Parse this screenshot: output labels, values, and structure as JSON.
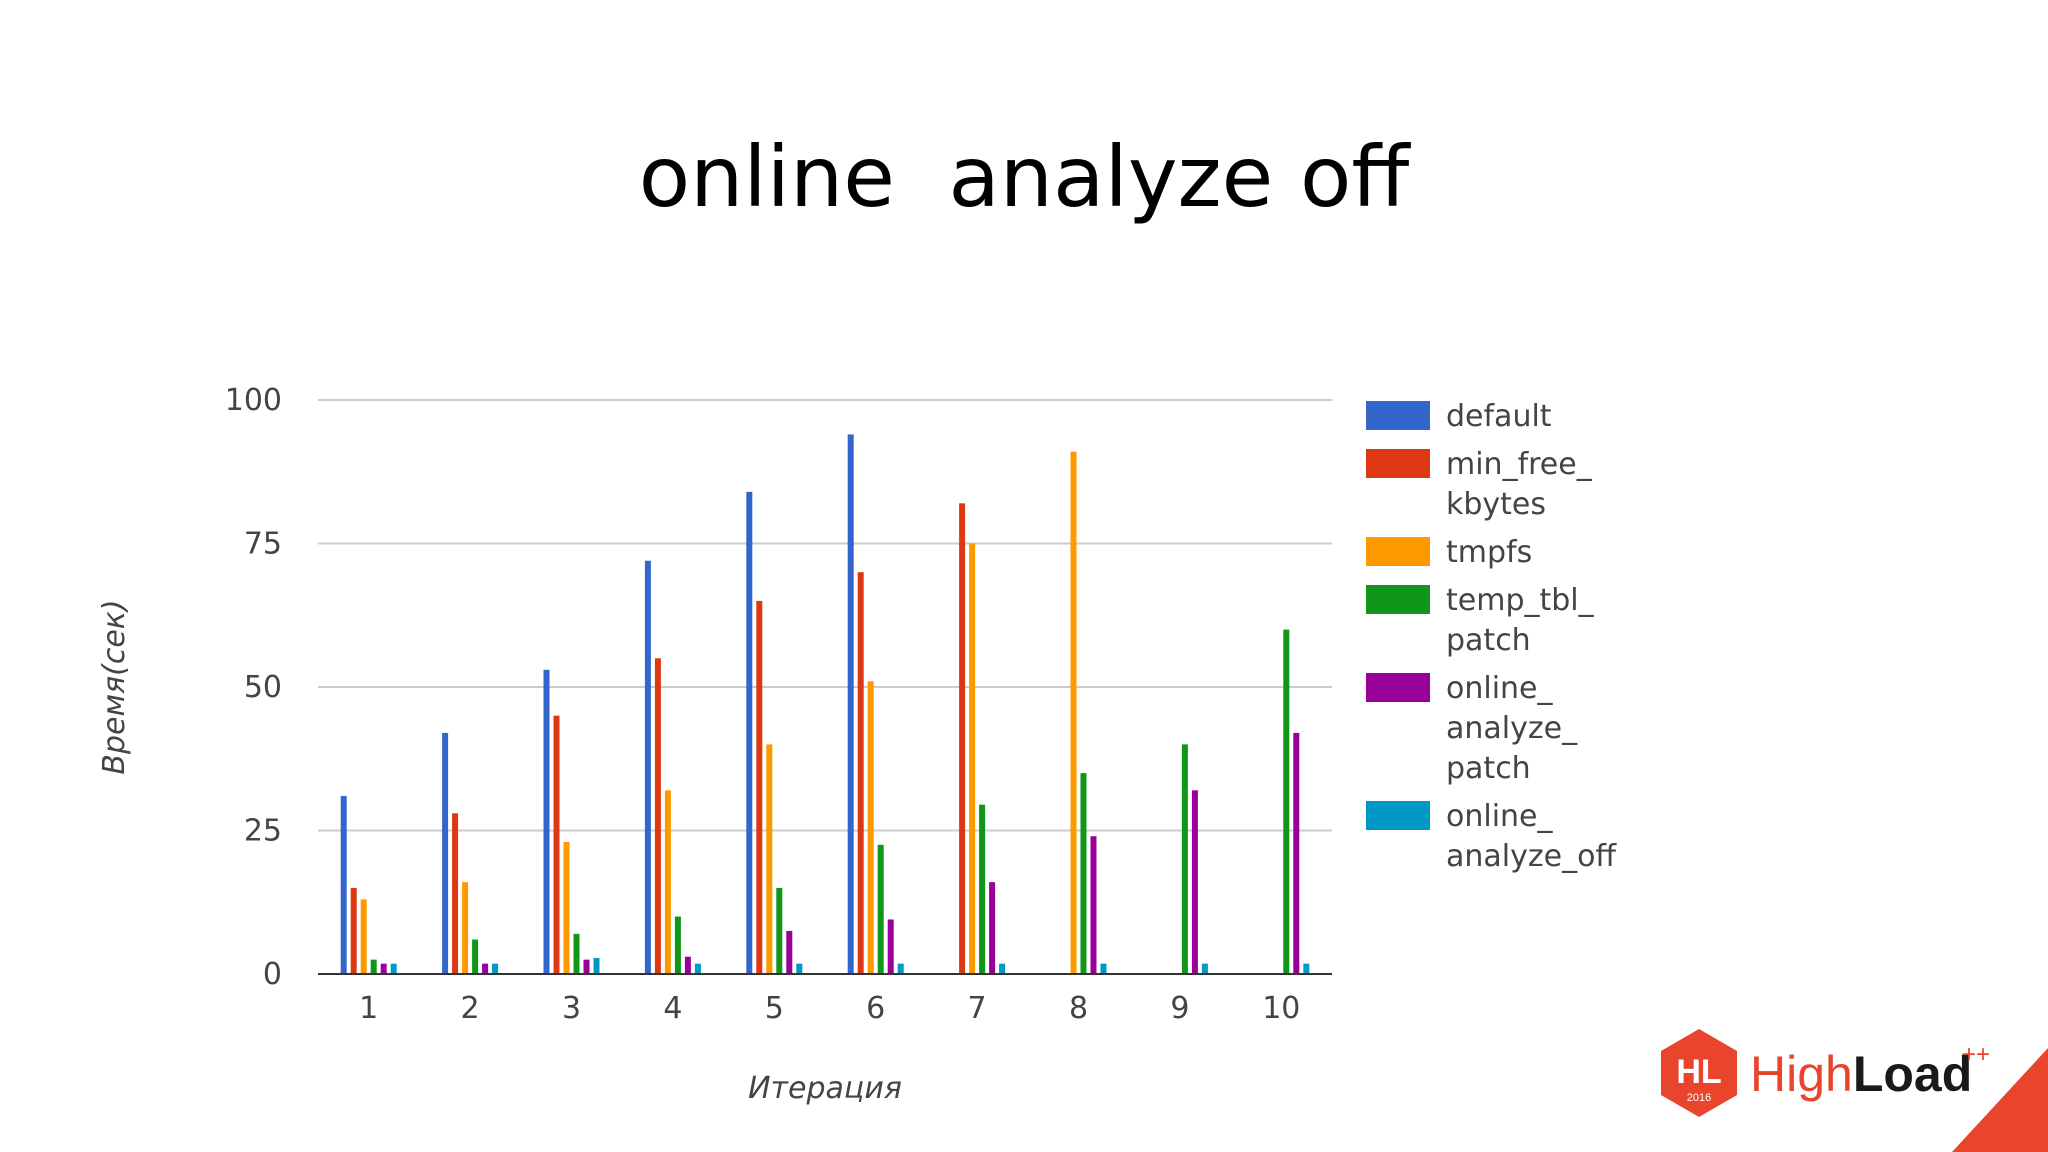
{
  "slide": {
    "title": "online  analyze off"
  },
  "chart_data": {
    "type": "bar",
    "categories": [
      "1",
      "2",
      "3",
      "4",
      "5",
      "6",
      "7",
      "8",
      "9",
      "10"
    ],
    "xlabel": "Итерация",
    "ylabel": "Время(сек)",
    "ylim": [
      0,
      100
    ],
    "yticks": [
      "0",
      "25",
      "50",
      "75",
      "100"
    ],
    "grid": true,
    "legend_position": "right",
    "series": [
      {
        "name": "default",
        "legend_lines": [
          "default"
        ],
        "color": "#3366cc",
        "values": [
          31,
          42,
          53,
          72,
          84,
          94,
          null,
          null,
          null,
          null
        ]
      },
      {
        "name": "min_free_kbytes",
        "legend_lines": [
          "min_free_",
          "kbytes"
        ],
        "color": "#dc3912",
        "values": [
          15,
          28,
          45,
          55,
          65,
          70,
          82,
          null,
          null,
          null
        ]
      },
      {
        "name": "tmpfs",
        "legend_lines": [
          "tmpfs"
        ],
        "color": "#ff9900",
        "values": [
          13,
          16,
          23,
          32,
          40,
          51,
          75,
          91,
          null,
          null
        ]
      },
      {
        "name": "temp_tbl_patch",
        "legend_lines": [
          "temp_tbl_",
          "patch"
        ],
        "color": "#109618",
        "values": [
          2.5,
          6,
          7,
          10,
          15,
          22.5,
          29.5,
          35,
          40,
          60
        ]
      },
      {
        "name": "online_analyze_patch",
        "legend_lines": [
          "online_",
          "analyze_",
          "patch"
        ],
        "color": "#990099",
        "values": [
          1.8,
          1.8,
          2.5,
          3,
          7.5,
          9.5,
          16,
          24,
          32,
          42
        ]
      },
      {
        "name": "online_analyze_off",
        "legend_lines": [
          "online_",
          "analyze_off"
        ],
        "color": "#0099c6",
        "values": [
          1.8,
          1.8,
          2.8,
          1.8,
          1.8,
          1.8,
          1.8,
          1.8,
          1.8,
          1.8
        ]
      }
    ]
  },
  "logo": {
    "badge_text": "HL",
    "year": "2016",
    "brand_part1": "High",
    "brand_part2": "Load",
    "brand_sup": "++",
    "accent_color": "#e8452c"
  }
}
